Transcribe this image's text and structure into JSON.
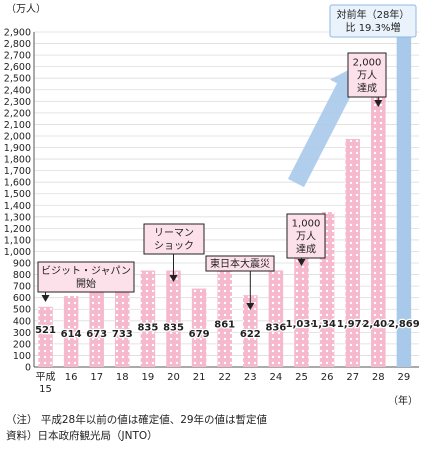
{
  "chart_data": {
    "type": "bar",
    "title": "",
    "ylabel": "（万人）",
    "x_unit": "（年）",
    "ylim": [
      0,
      2900
    ],
    "y_step": 100,
    "grid": true,
    "categories": [
      "平成\n15",
      "16",
      "17",
      "18",
      "19",
      "20",
      "21",
      "22",
      "23",
      "24",
      "25",
      "26",
      "27",
      "28",
      "29"
    ],
    "values": [
      521,
      614,
      673,
      733,
      835,
      835,
      679,
      861,
      622,
      836,
      1036,
      1341,
      1974,
      2404,
      2869
    ],
    "value_labels": [
      "521",
      "614",
      "673",
      "733",
      "835",
      "835",
      "679",
      "861",
      "622",
      "836",
      "1,036",
      "1,341",
      "1,974",
      "2,404",
      "2,869"
    ],
    "highlighted_category_index": 14,
    "colors": {
      "bar_fill": "#f6b8cc",
      "bar_dot": "#ffffff",
      "highlight_bar": "#a9c9ea",
      "callout_fill": "#fde1ea",
      "callout_stroke": "#222222",
      "arrow": "#a9c9ea",
      "grid": "#dddddd"
    },
    "annotations": [
      {
        "text": "ビジット・ジャパン\n開始",
        "category_index": 0
      },
      {
        "text": "リーマン\nショック",
        "category_index": 5
      },
      {
        "text": "東日本大震災",
        "category_index": 8
      },
      {
        "text": "1,000\n万人\n達成",
        "category_index": 10
      },
      {
        "text": "2,000\n万人\n達成",
        "category_index": 13
      }
    ],
    "growth_box": {
      "text": "対前年（28年）\n比 19.3%増"
    }
  },
  "notes": [
    "（注） 平成28年以前の値は確定値、29年の値は暫定値",
    "資料）日本政府観光局（JNTO）"
  ]
}
